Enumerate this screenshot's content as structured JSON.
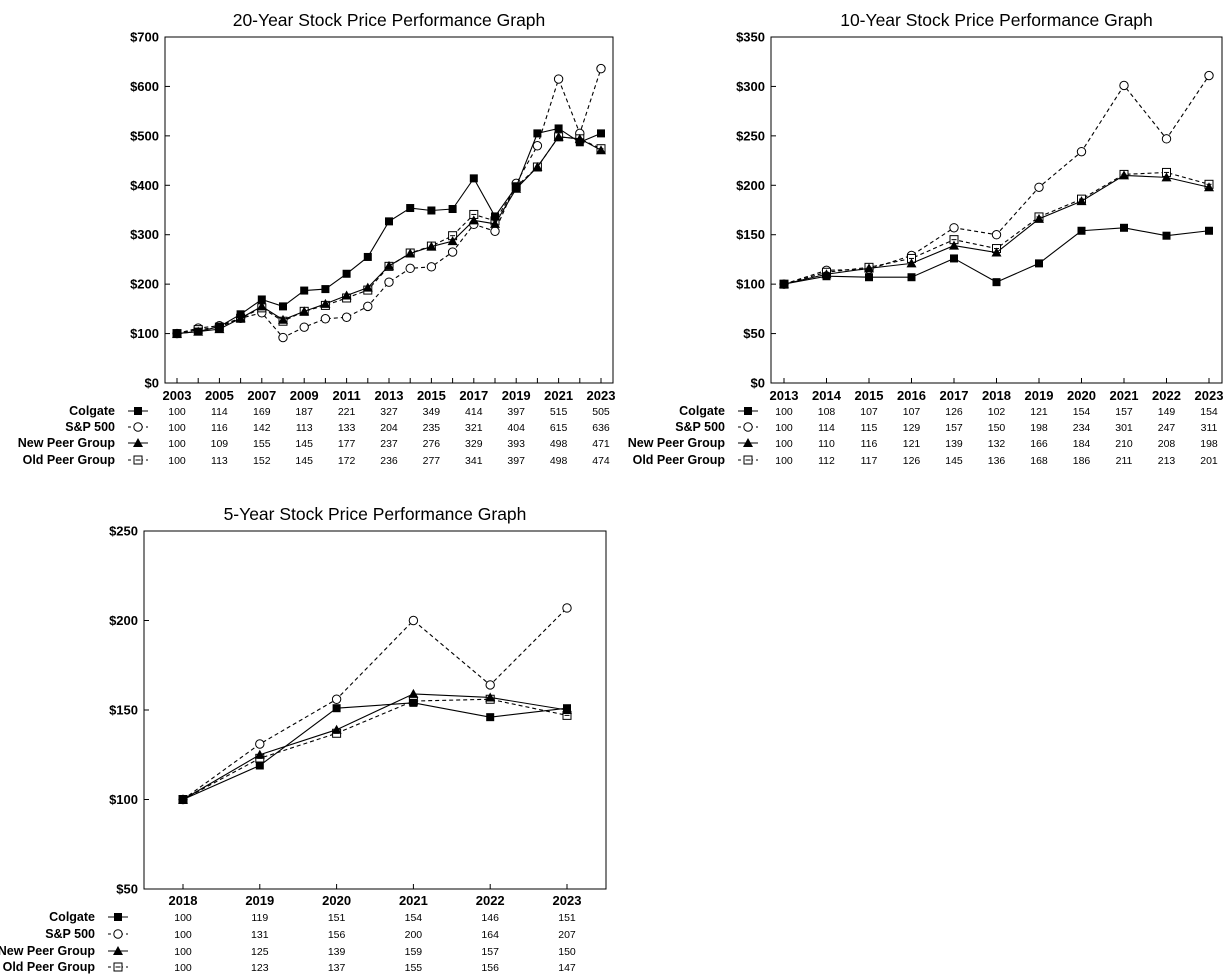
{
  "chart_data": [
    {
      "type": "line",
      "title": "20-Year Stock Price Performance Graph",
      "x": [
        2003,
        2004,
        2005,
        2006,
        2007,
        2008,
        2009,
        2010,
        2011,
        2012,
        2013,
        2014,
        2015,
        2016,
        2017,
        2018,
        2019,
        2020,
        2021,
        2022,
        2023
      ],
      "x_tick_labels": [
        "2003",
        "2005",
        "2007",
        "2009",
        "2011",
        "2013",
        "2015",
        "2017",
        "2019",
        "2021",
        "2023"
      ],
      "table_years": [
        2003,
        2005,
        2007,
        2009,
        2011,
        2013,
        2015,
        2017,
        2019,
        2021,
        2023
      ],
      "ylim": [
        0,
        700
      ],
      "y_tick_labels": [
        "$0",
        "$100",
        "$200",
        "$300",
        "$400",
        "$500",
        "$600",
        "$700"
      ],
      "series": [
        {
          "name": "Colgate",
          "marker": "filled-square",
          "dash": "solid",
          "values": [
            100,
            104,
            114,
            139,
            169,
            155,
            187,
            190,
            221,
            255,
            327,
            354,
            349,
            352,
            414,
            337,
            397,
            505,
            515,
            487,
            505
          ],
          "table": [
            "100",
            "114",
            "169",
            "187",
            "221",
            "327",
            "349",
            "414",
            "397",
            "515",
            "505"
          ]
        },
        {
          "name": "S&P 500",
          "marker": "open-circle",
          "dash": "dashed",
          "values": [
            100,
            111,
            116,
            131,
            142,
            92,
            113,
            130,
            133,
            155,
            204,
            232,
            235,
            265,
            321,
            307,
            404,
            480,
            615,
            505,
            636
          ],
          "table": [
            "100",
            "116",
            "142",
            "113",
            "133",
            "204",
            "235",
            "321",
            "404",
            "615",
            "636"
          ]
        },
        {
          "name": "New Peer Group",
          "marker": "filled-triangle",
          "dash": "solid",
          "values": [
            100,
            104,
            109,
            131,
            155,
            128,
            145,
            160,
            177,
            193,
            237,
            262,
            276,
            287,
            329,
            322,
            393,
            437,
            498,
            494,
            471
          ],
          "table": [
            "100",
            "109",
            "155",
            "145",
            "177",
            "237",
            "276",
            "329",
            "393",
            "498",
            "471"
          ]
        },
        {
          "name": "Old Peer Group",
          "marker": "open-square",
          "dash": "dashed",
          "values": [
            100,
            108,
            113,
            131,
            152,
            125,
            145,
            157,
            172,
            188,
            236,
            263,
            277,
            298,
            341,
            328,
            397,
            437,
            498,
            494,
            474
          ],
          "table": [
            "100",
            "113",
            "152",
            "145",
            "172",
            "236",
            "277",
            "341",
            "397",
            "498",
            "474"
          ]
        }
      ]
    },
    {
      "type": "line",
      "title": "10-Year Stock Price Performance Graph",
      "x": [
        2013,
        2014,
        2015,
        2016,
        2017,
        2018,
        2019,
        2020,
        2021,
        2022,
        2023
      ],
      "x_tick_labels": [
        "2013",
        "2014",
        "2015",
        "2016",
        "2017",
        "2018",
        "2019",
        "2020",
        "2021",
        "2022",
        "2023"
      ],
      "table_years": [
        2013,
        2014,
        2015,
        2016,
        2017,
        2018,
        2019,
        2020,
        2021,
        2022,
        2023
      ],
      "ylim": [
        0,
        350
      ],
      "y_tick_labels": [
        "$0",
        "$50",
        "$100",
        "$150",
        "$200",
        "$250",
        "$300",
        "$350"
      ],
      "series": [
        {
          "name": "Colgate",
          "marker": "filled-square",
          "dash": "solid",
          "values": [
            100,
            108,
            107,
            107,
            126,
            102,
            121,
            154,
            157,
            149,
            154
          ],
          "table": [
            "100",
            "108",
            "107",
            "107",
            "126",
            "102",
            "121",
            "154",
            "157",
            "149",
            "154"
          ]
        },
        {
          "name": "S&P 500",
          "marker": "open-circle",
          "dash": "dashed",
          "values": [
            100,
            114,
            115,
            129,
            157,
            150,
            198,
            234,
            301,
            247,
            311
          ],
          "table": [
            "100",
            "114",
            "115",
            "129",
            "157",
            "150",
            "198",
            "234",
            "301",
            "247",
            "311"
          ]
        },
        {
          "name": "New Peer Group",
          "marker": "filled-triangle",
          "dash": "solid",
          "values": [
            100,
            110,
            116,
            121,
            139,
            132,
            166,
            184,
            210,
            208,
            198
          ],
          "table": [
            "100",
            "110",
            "116",
            "121",
            "139",
            "132",
            "166",
            "184",
            "210",
            "208",
            "198"
          ]
        },
        {
          "name": "Old Peer Group",
          "marker": "open-square",
          "dash": "dashed",
          "values": [
            100,
            112,
            117,
            126,
            145,
            136,
            168,
            186,
            211,
            213,
            201
          ],
          "table": [
            "100",
            "112",
            "117",
            "126",
            "145",
            "136",
            "168",
            "186",
            "211",
            "213",
            "201"
          ]
        }
      ]
    },
    {
      "type": "line",
      "title": "5-Year Stock Price Performance Graph",
      "x": [
        2018,
        2019,
        2020,
        2021,
        2022,
        2023
      ],
      "x_tick_labels": [
        "2018",
        "2019",
        "2020",
        "2021",
        "2022",
        "2023"
      ],
      "table_years": [
        2018,
        2019,
        2020,
        2021,
        2022,
        2023
      ],
      "ylim": [
        50,
        250
      ],
      "y_tick_labels": [
        "$50",
        "$100",
        "$150",
        "$200",
        "$250"
      ],
      "series": [
        {
          "name": "Colgate",
          "marker": "filled-square",
          "dash": "solid",
          "values": [
            100,
            119,
            151,
            154,
            146,
            151
          ],
          "table": [
            "100",
            "119",
            "151",
            "154",
            "146",
            "151"
          ]
        },
        {
          "name": "S&P 500",
          "marker": "open-circle",
          "dash": "dashed",
          "values": [
            100,
            131,
            156,
            200,
            164,
            207
          ],
          "table": [
            "100",
            "131",
            "156",
            "200",
            "164",
            "207"
          ]
        },
        {
          "name": "New Peer Group",
          "marker": "filled-triangle",
          "dash": "solid",
          "values": [
            100,
            125,
            139,
            159,
            157,
            150
          ],
          "table": [
            "100",
            "125",
            "139",
            "159",
            "157",
            "150"
          ]
        },
        {
          "name": "Old Peer Group",
          "marker": "open-square",
          "dash": "dashed",
          "values": [
            100,
            123,
            137,
            155,
            156,
            147
          ],
          "table": [
            "100",
            "123",
            "137",
            "155",
            "156",
            "147"
          ]
        }
      ]
    }
  ]
}
